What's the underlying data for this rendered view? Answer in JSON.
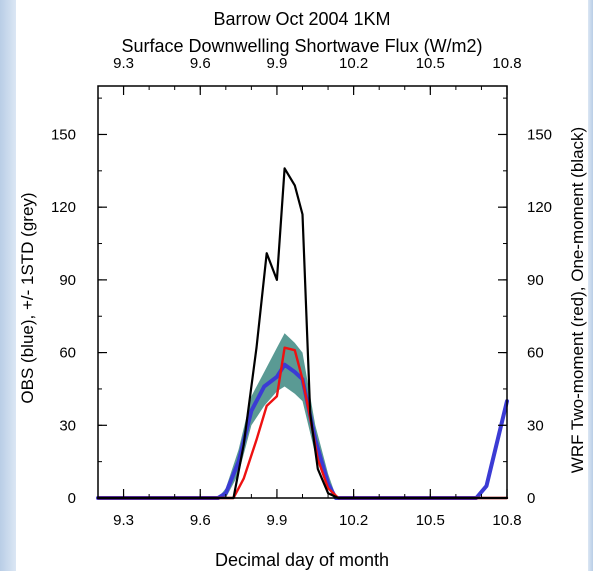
{
  "chart_data": {
    "type": "line",
    "title": "Barrow Oct 2004 1KM",
    "subtitle": "Surface Downwelling Shortwave Flux (W/m2)",
    "xlabel": "Decimal day of month",
    "ylabel_left": "OBS (blue), +/- 1STD (grey)",
    "ylabel_right": "WRF Two-moment (red), One-moment (black)",
    "xlim": [
      9.2,
      10.8
    ],
    "ylim": [
      0,
      170
    ],
    "x_ticks": [
      "9.3",
      "9.6",
      "9.9",
      "10.2",
      "10.5",
      "10.8"
    ],
    "y_ticks": [
      "0",
      "30",
      "60",
      "90",
      "120",
      "150"
    ],
    "colors": {
      "obs": "#3b3bd4",
      "std_band": "#5a9a94",
      "two_moment": "#ee1111",
      "one_moment": "#000000"
    },
    "std_band": {
      "x": [
        9.67,
        9.7,
        9.75,
        9.8,
        9.85,
        9.9,
        9.93,
        9.97,
        10.0,
        10.05,
        10.1,
        10.13,
        10.15
      ],
      "upper": [
        0,
        4,
        20,
        42,
        52,
        62,
        68,
        64,
        60,
        30,
        10,
        1,
        0
      ],
      "lower": [
        0,
        0,
        10,
        30,
        38,
        44,
        46,
        43,
        40,
        18,
        4,
        0,
        0
      ]
    },
    "series": [
      {
        "name": "OBS",
        "x": [
          9.2,
          9.67,
          9.7,
          9.75,
          9.8,
          9.85,
          9.9,
          9.93,
          9.97,
          10.0,
          10.05,
          10.1,
          10.13,
          10.15,
          10.68,
          10.72,
          10.8
        ],
        "y": [
          0,
          0,
          2,
          15,
          36,
          46,
          50,
          55,
          52,
          49,
          24,
          6,
          0,
          0,
          0,
          5,
          40
        ]
      },
      {
        "name": "WRF Two-moment",
        "x": [
          9.2,
          9.73,
          9.77,
          9.82,
          9.86,
          9.9,
          9.93,
          9.97,
          10.0,
          10.03,
          10.06,
          10.1,
          10.14,
          10.2,
          10.8
        ],
        "y": [
          0,
          0,
          8,
          24,
          38,
          42,
          62,
          61,
          49,
          33,
          16,
          4,
          0,
          0,
          0
        ]
      },
      {
        "name": "WRF One-moment",
        "x": [
          9.2,
          9.73,
          9.77,
          9.82,
          9.86,
          9.9,
          9.93,
          9.97,
          10.0,
          10.03,
          10.06,
          10.1,
          10.14,
          10.2,
          10.8
        ],
        "y": [
          0,
          0,
          22,
          62,
          101,
          90,
          136,
          129,
          117,
          35,
          12,
          2,
          0,
          0,
          0
        ]
      }
    ]
  }
}
